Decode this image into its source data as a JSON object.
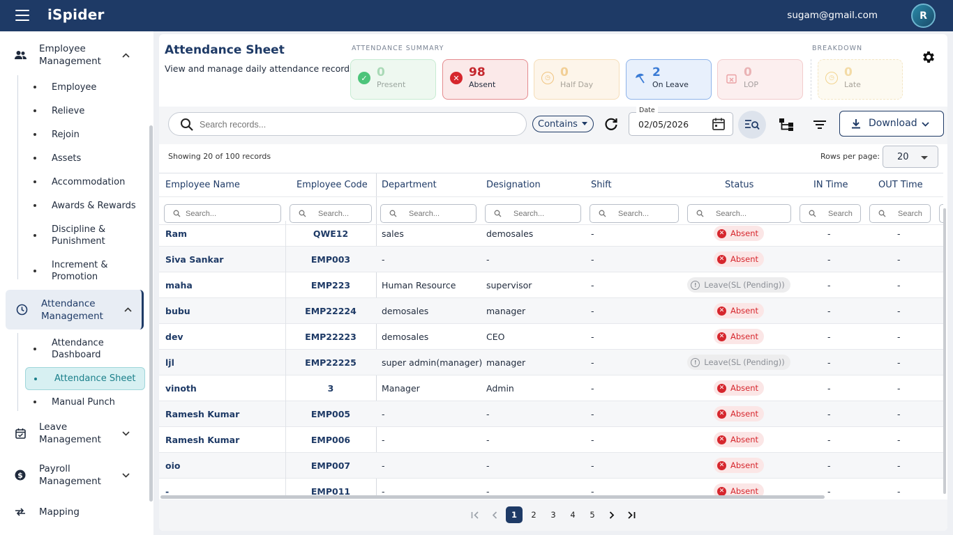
{
  "app": {
    "brand": "iSpider",
    "user_email": "sugam@gmail.com",
    "avatar_initial": "R"
  },
  "sidebar": {
    "groups": [
      {
        "label": "Employee Management",
        "icon": "people-icon",
        "expanded": true
      },
      {
        "label": "Attendance Management",
        "icon": "clock-icon",
        "expanded": true,
        "active": true
      },
      {
        "label": "Leave Management",
        "icon": "calendar-check-icon",
        "expanded": false
      },
      {
        "label": "Payroll Management",
        "icon": "dollar-icon",
        "expanded": false
      },
      {
        "label": "Mapping",
        "icon": "swap-arrows-icon"
      }
    ],
    "employee_items": [
      "Employee",
      "Relieve",
      "Rejoin",
      "Assets",
      "Accommodation",
      "Awards & Rewards",
      "Discipline & Punishment",
      "Increment & Promotion"
    ],
    "attendance_items": [
      "Attendance Dashboard",
      "Attendance Sheet",
      "Manual Punch"
    ],
    "active_item": "Attendance Sheet"
  },
  "header": {
    "title": "Attendance Sheet",
    "subtitle": "View and manage daily attendance records",
    "summary_label": "ATTENDANCE SUMMARY",
    "breakdown_label": "BREAKDOWN"
  },
  "summary_cards": [
    {
      "value": "0",
      "label": "Present",
      "color": "#4cc47a"
    },
    {
      "value": "98",
      "label": "Absent",
      "color": "#d6262d"
    },
    {
      "value": "0",
      "label": "Half Day",
      "color": "#f0b24a"
    },
    {
      "value": "2",
      "label": "On Leave",
      "color": "#3a7bd5"
    },
    {
      "value": "0",
      "label": "LOP",
      "color": "#e8868a"
    },
    {
      "value": "0",
      "label": "Late",
      "color": "#f0c060"
    }
  ],
  "toolbar": {
    "search_placeholder": "Search records...",
    "filter_mode": "Contains",
    "date_label": "Date",
    "date_value": "02/05/2026",
    "download_label": "Download"
  },
  "table_meta": {
    "showing": "Showing 20 of 100 records",
    "rows_per_page_label": "Rows per page:",
    "rows_per_page": "20"
  },
  "columns": [
    "Employee Name",
    "Employee Code",
    "Department",
    "Designation",
    "Shift",
    "Status",
    "IN Time",
    "OUT Time"
  ],
  "filter_placeholders": [
    "Search...",
    "Search...",
    "Search...",
    "Search...",
    "Search...",
    "Search...",
    "Search",
    "Search"
  ],
  "rows": [
    {
      "name": "Ram",
      "code": "QWE12",
      "dept": "sales",
      "desig": "demosales",
      "shift": "-",
      "status": "Absent",
      "in": "-",
      "out": "-"
    },
    {
      "name": "Siva Sankar",
      "code": "EMP003",
      "dept": "-",
      "desig": "-",
      "shift": "-",
      "status": "Absent",
      "in": "-",
      "out": "-"
    },
    {
      "name": "maha",
      "code": "EMP223",
      "dept": "Human Resource",
      "desig": "supervisor",
      "shift": "-",
      "status": "Leave(SL (Pending))",
      "in": "-",
      "out": "-"
    },
    {
      "name": "bubu",
      "code": "EMP22224",
      "dept": "demosales",
      "desig": "manager",
      "shift": "-",
      "status": "Absent",
      "in": "-",
      "out": "-"
    },
    {
      "name": "dev",
      "code": "EMP22223",
      "dept": "demosales",
      "desig": "CEO",
      "shift": "-",
      "status": "Absent",
      "in": "-",
      "out": "-"
    },
    {
      "name": "ljl",
      "code": "EMP22225",
      "dept": "super admin(manager)",
      "desig": "manager",
      "shift": "-",
      "status": "Leave(SL (Pending))",
      "in": "-",
      "out": "-"
    },
    {
      "name": "vinoth",
      "code": "3",
      "dept": "Manager",
      "desig": "Admin",
      "shift": "-",
      "status": "Absent",
      "in": "-",
      "out": "-"
    },
    {
      "name": "Ramesh Kumar",
      "code": "EMP005",
      "dept": "-",
      "desig": "-",
      "shift": "-",
      "status": "Absent",
      "in": "-",
      "out": "-"
    },
    {
      "name": "Ramesh Kumar",
      "code": "EMP006",
      "dept": "-",
      "desig": "-",
      "shift": "-",
      "status": "Absent",
      "in": "-",
      "out": "-"
    },
    {
      "name": "oio",
      "code": "EMP007",
      "dept": "-",
      "desig": "-",
      "shift": "-",
      "status": "Absent",
      "in": "-",
      "out": "-"
    },
    {
      "name": "-",
      "code": "EMP011",
      "dept": "-",
      "desig": "-",
      "shift": "-",
      "status": "Absent",
      "in": "-",
      "out": "-"
    }
  ],
  "pagination": {
    "pages": [
      "1",
      "2",
      "3",
      "4",
      "5"
    ],
    "current": "1"
  }
}
